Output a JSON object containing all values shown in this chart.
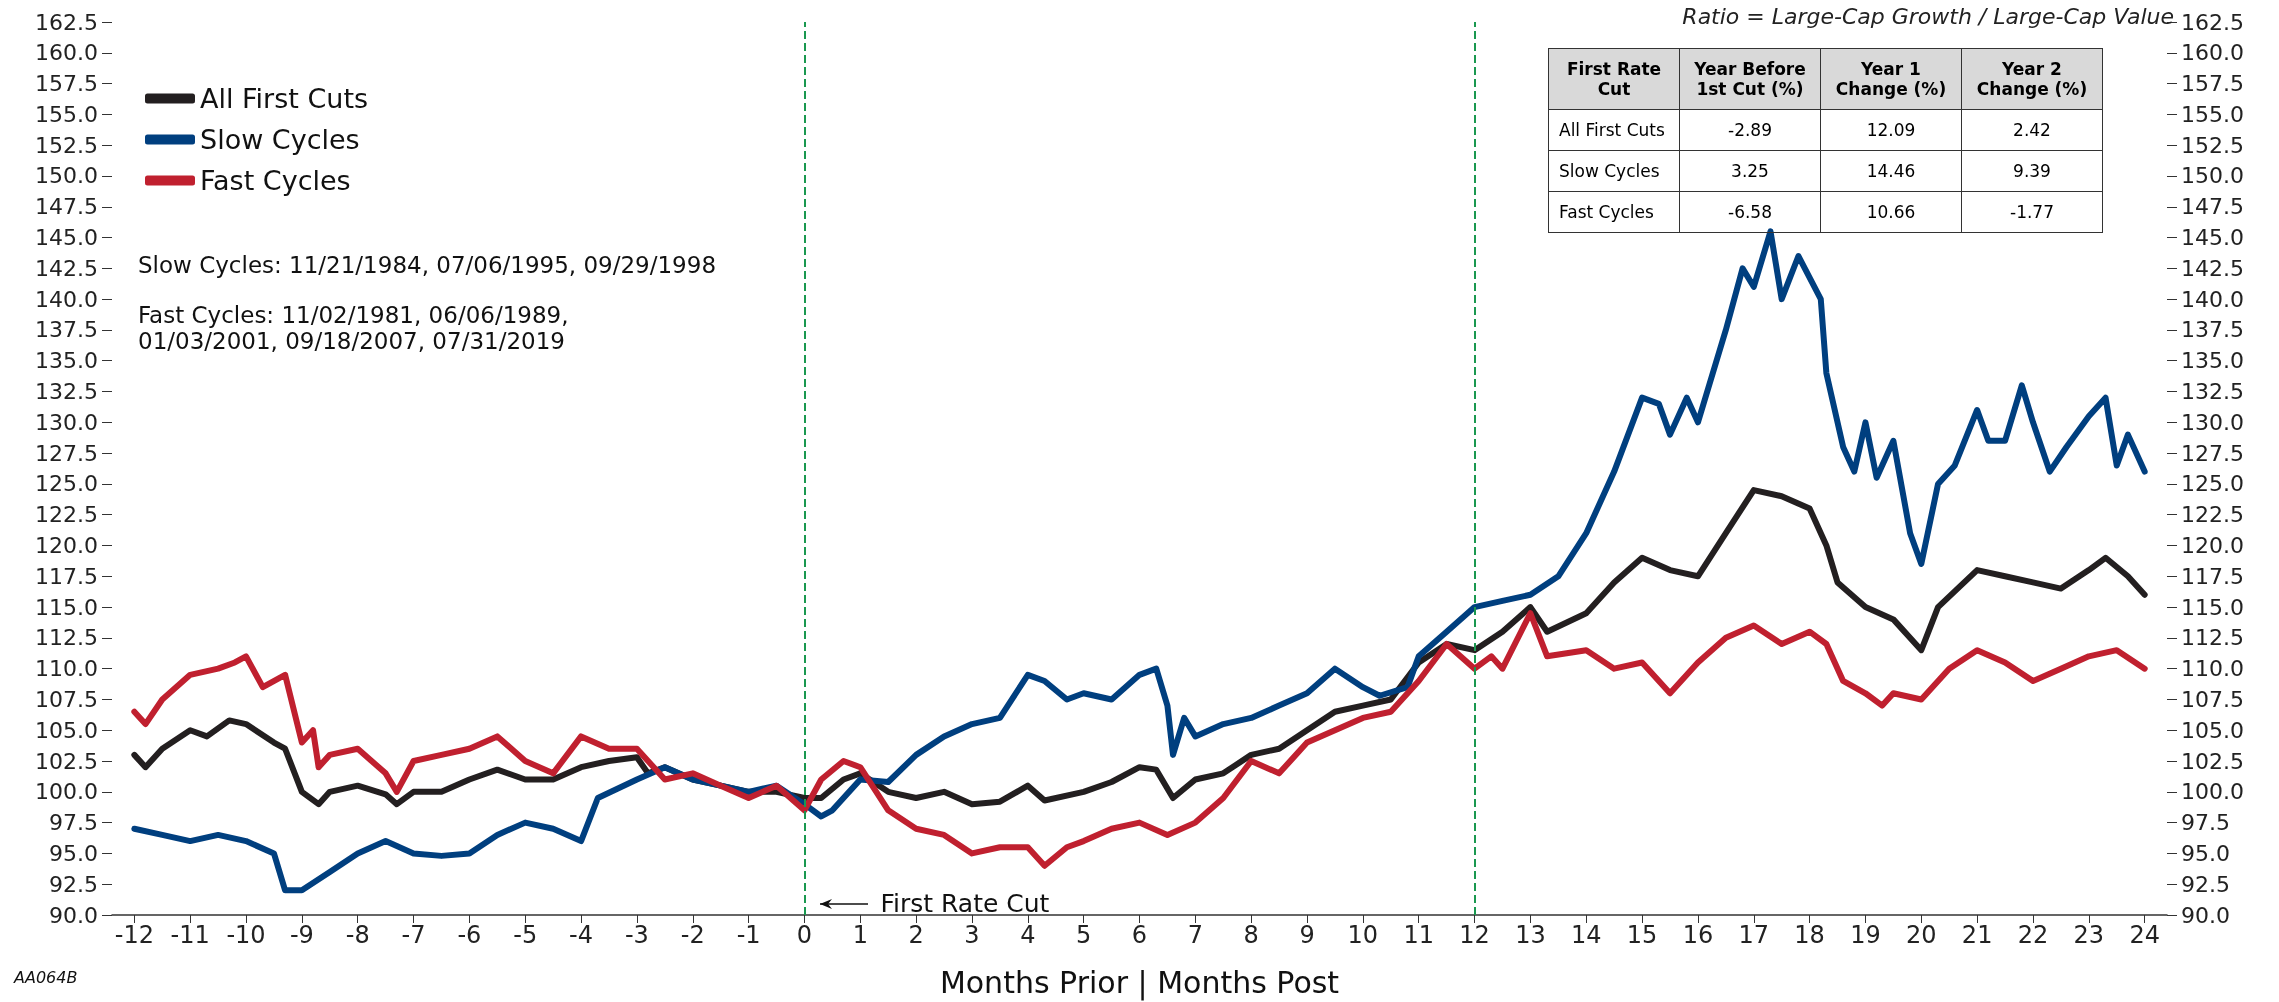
{
  "chart_data": [
    {
      "type": "line",
      "title": "Ratio = Large-Cap Growth / Large-Cap Value",
      "xlabel": "Months Prior | Months Post",
      "legend": "top left",
      "marker": "none",
      "line_style": "solid",
      "grid": false,
      "xlim": [
        -12.4,
        24.4
      ],
      "xticks": [
        -12,
        -11,
        -10,
        -9,
        -8,
        -7,
        -6,
        -5,
        -4,
        -3,
        -2,
        -1,
        0,
        1,
        2,
        3,
        4,
        5,
        6,
        7,
        8,
        9,
        10,
        11,
        12,
        13,
        14,
        15,
        16,
        17,
        18,
        19,
        20,
        21,
        22,
        23,
        24
      ],
      "ylim": [
        90,
        162.5
      ],
      "yticks": [
        {
          "value": 90,
          "label": "90.0"
        },
        {
          "value": 92.5,
          "label": "92.5"
        },
        {
          "value": 95,
          "label": "95.0"
        },
        {
          "value": 97.5,
          "label": "97.5"
        },
        {
          "value": 100,
          "label": "100.0"
        },
        {
          "value": 102.5,
          "label": "102.5"
        },
        {
          "value": 105,
          "label": "105.0"
        },
        {
          "value": 107.5,
          "label": "107.5"
        },
        {
          "value": 110,
          "label": "110.0"
        },
        {
          "value": 112.5,
          "label": "112.5"
        },
        {
          "value": 115,
          "label": "115.0"
        },
        {
          "value": 117.5,
          "label": "117.5"
        },
        {
          "value": 120,
          "label": "120.0"
        },
        {
          "value": 122.5,
          "label": "122.5"
        },
        {
          "value": 125,
          "label": "125.0"
        },
        {
          "value": 127.5,
          "label": "127.5"
        },
        {
          "value": 130,
          "label": "130.0"
        },
        {
          "value": 132.5,
          "label": "132.5"
        },
        {
          "value": 135,
          "label": "135.0"
        },
        {
          "value": 137.5,
          "label": "137.5"
        },
        {
          "value": 140,
          "label": "140.0"
        },
        {
          "value": 142.5,
          "label": "142.5"
        },
        {
          "value": 145,
          "label": "145.0"
        },
        {
          "value": 147.5,
          "label": "147.5"
        },
        {
          "value": 150,
          "label": "150.0"
        },
        {
          "value": 152.5,
          "label": "152.5"
        },
        {
          "value": 155,
          "label": "155.0"
        },
        {
          "value": 157.5,
          "label": "157.5"
        },
        {
          "value": 160,
          "label": "160.0"
        },
        {
          "value": 162.5,
          "label": "162.5"
        }
      ],
      "y2lim": [
        90,
        162.5
      ],
      "y2ticks": [
        {
          "value": 90,
          "label": "90.0"
        },
        {
          "value": 92.5,
          "label": "92.5"
        },
        {
          "value": 95,
          "label": "95.0"
        },
        {
          "value": 97.5,
          "label": "97.5"
        },
        {
          "value": 100,
          "label": "100.0"
        },
        {
          "value": 102.5,
          "label": "102.5"
        },
        {
          "value": 105,
          "label": "105.0"
        },
        {
          "value": 107.5,
          "label": "107.5"
        },
        {
          "value": 110,
          "label": "110.0"
        },
        {
          "value": 112.5,
          "label": "112.5"
        },
        {
          "value": 115,
          "label": "115.0"
        },
        {
          "value": 117.5,
          "label": "117.5"
        },
        {
          "value": 120,
          "label": "120.0"
        },
        {
          "value": 122.5,
          "label": "122.5"
        },
        {
          "value": 125,
          "label": "125.0"
        },
        {
          "value": 127.5,
          "label": "127.5"
        },
        {
          "value": 130,
          "label": "130.0"
        },
        {
          "value": 132.5,
          "label": "132.5"
        },
        {
          "value": 135,
          "label": "135.0"
        },
        {
          "value": 137.5,
          "label": "137.5"
        },
        {
          "value": 140,
          "label": "140.0"
        },
        {
          "value": 142.5,
          "label": "142.5"
        },
        {
          "value": 145,
          "label": "145.0"
        },
        {
          "value": 147.5,
          "label": "147.5"
        },
        {
          "value": 150,
          "label": "150.0"
        },
        {
          "value": 152.5,
          "label": "152.5"
        },
        {
          "value": 155,
          "label": "155.0"
        },
        {
          "value": 157.5,
          "label": "157.5"
        },
        {
          "value": 160,
          "label": "160.0"
        },
        {
          "value": 162.5,
          "label": "162.5"
        }
      ],
      "ref_lines": [
        {
          "axis": "x",
          "value": 0,
          "color": "#1a9850",
          "line_style": "dashed"
        },
        {
          "axis": "x",
          "value": 12,
          "color": "#1a9850",
          "line_style": "dashed"
        }
      ],
      "annotations": [
        "Slow Cycles: 11/21/1984, 07/06/1995, 09/29/1998",
        "Fast Cycles: 11/02/1981, 06/06/1989, 01/03/2001, 09/18/2007, 07/31/2019",
        "First Rate Cut",
        "AA064B"
      ],
      "series": [
        {
          "name": "All First Cuts",
          "color": "#231f20",
          "x": [
            -12,
            -11.8,
            -11.5,
            -11,
            -10.7,
            -10.3,
            -10,
            -9.5,
            -9.3,
            -9,
            -8.7,
            -8.5,
            -8,
            -7.5,
            -7.3,
            -7,
            -6.5,
            -6,
            -5.5,
            -5,
            -4.5,
            -4,
            -3.5,
            -3,
            -2.8,
            -2.5,
            -2,
            -1.5,
            -1,
            -0.5,
            0,
            0.3,
            0.7,
            1,
            1.5,
            2,
            2.5,
            3,
            3.5,
            4,
            4.3,
            5,
            5.5,
            6,
            6.3,
            6.6,
            7,
            7.5,
            8,
            8.5,
            9,
            9.5,
            10,
            10.5,
            11,
            11.5,
            12,
            12.5,
            13,
            13.3,
            14,
            14.5,
            15,
            15.5,
            16,
            16.5,
            17,
            17.5,
            18,
            18.3,
            18.5,
            19,
            19.5,
            20,
            20.3,
            21,
            21.5,
            22,
            22.5,
            23,
            23.3,
            23.7,
            24
          ],
          "values": [
            103,
            102,
            103.5,
            105,
            104.5,
            105.8,
            105.5,
            104,
            103.5,
            100,
            99,
            100,
            100.5,
            99.8,
            99,
            100,
            100,
            101,
            101.8,
            101,
            101,
            102,
            102.5,
            102.8,
            101.5,
            102,
            101,
            100.5,
            100,
            100,
            99.5,
            99.5,
            101,
            101.5,
            100,
            99.5,
            100,
            99,
            99.2,
            100.5,
            99.3,
            100,
            100.8,
            102,
            101.8,
            99.5,
            101,
            101.5,
            103,
            103.5,
            105,
            106.5,
            107,
            107.5,
            110.5,
            112,
            111.5,
            113,
            115,
            113,
            114.5,
            117,
            119,
            118,
            117.5,
            121,
            124.5,
            124,
            123,
            120,
            117,
            115,
            114,
            111.5,
            115,
            118,
            117.5,
            117,
            116.5,
            118,
            119,
            117.5,
            116
          ]
        },
        {
          "name": "Slow Cycles",
          "color": "#003f7f",
          "x": [
            -12,
            -11.5,
            -11,
            -10.5,
            -10,
            -9.5,
            -9.3,
            -9,
            -8.5,
            -8,
            -7.5,
            -7,
            -6.5,
            -6,
            -5.5,
            -5,
            -4.5,
            -4,
            -3.7,
            -3,
            -2.5,
            -2,
            -1.5,
            -1,
            -0.5,
            0,
            0.3,
            0.5,
            1,
            1.5,
            2,
            2.5,
            3,
            3.5,
            4,
            4.3,
            4.7,
            5,
            5.5,
            6,
            6.3,
            6.5,
            6.6,
            6.8,
            7,
            7.5,
            8,
            8.5,
            9,
            9.5,
            10,
            10.3,
            10.8,
            11,
            11.5,
            12,
            12.5,
            13,
            13.5,
            14,
            14.5,
            15,
            15.3,
            15.5,
            15.8,
            16,
            16.5,
            16.8,
            17,
            17.3,
            17.5,
            17.8,
            18.2,
            18.3,
            18.6,
            18.8,
            19,
            19.2,
            19.5,
            19.8,
            20,
            20.3,
            20.6,
            21,
            21.2,
            21.5,
            21.8,
            22,
            22.3,
            22.6,
            23,
            23.3,
            23.5,
            23.7,
            24
          ],
          "values": [
            97,
            96.5,
            96,
            96.5,
            96,
            95,
            92,
            92,
            93.5,
            95,
            96,
            95,
            94.8,
            95,
            96.5,
            97.5,
            97,
            96,
            99.5,
            101,
            102,
            101,
            100.5,
            100,
            100.5,
            99,
            98,
            98.5,
            101,
            100.8,
            103,
            104.5,
            105.5,
            106,
            109.5,
            109,
            107.5,
            108,
            107.5,
            109.5,
            110,
            107,
            103,
            106,
            104.5,
            105.5,
            106,
            107,
            108,
            110,
            108.5,
            107.8,
            108.5,
            111,
            113,
            115,
            115.5,
            116,
            117.5,
            121,
            126,
            132,
            131.5,
            129,
            132,
            130,
            137.5,
            142.5,
            141,
            145.5,
            140,
            143.5,
            140,
            134,
            128,
            126,
            130,
            125.5,
            128.5,
            121,
            118.5,
            125,
            126.5,
            131,
            128.5,
            128.5,
            133,
            130,
            126,
            128,
            130.5,
            132,
            126.5,
            129,
            126
          ]
        },
        {
          "name": "Fast Cycles",
          "color": "#c0202f",
          "x": [
            -12,
            -11.8,
            -11.5,
            -11,
            -10.5,
            -10.2,
            -10,
            -9.7,
            -9.3,
            -9,
            -8.8,
            -8.7,
            -8.5,
            -8,
            -7.5,
            -7.3,
            -7,
            -6.5,
            -6,
            -5.5,
            -5,
            -4.5,
            -4,
            -3.5,
            -3,
            -2.5,
            -2,
            -1.5,
            -1,
            -0.5,
            0,
            0.3,
            0.7,
            1,
            1.5,
            2,
            2.5,
            3,
            3.5,
            4,
            4.3,
            4.7,
            5,
            5.5,
            6,
            6.5,
            7,
            7.5,
            8,
            8.5,
            9,
            9.5,
            10,
            10.5,
            11,
            11.5,
            12,
            12.3,
            12.5,
            13,
            13.3,
            14,
            14.5,
            15,
            15.5,
            16,
            16.5,
            17,
            17.5,
            18,
            18.3,
            18.6,
            19,
            19.3,
            19.5,
            20,
            20.5,
            21,
            21.5,
            22,
            22.5,
            23,
            23.5,
            24
          ],
          "values": [
            106.5,
            105.5,
            107.5,
            109.5,
            110,
            110.5,
            111,
            108.5,
            109.5,
            104,
            105,
            102,
            103,
            103.5,
            101.5,
            100,
            102.5,
            103,
            103.5,
            104.5,
            102.5,
            101.5,
            104.5,
            103.5,
            103.5,
            101,
            101.5,
            100.5,
            99.5,
            100.5,
            98.5,
            101,
            102.5,
            102,
            98.5,
            97,
            96.5,
            95,
            95.5,
            95.5,
            94,
            95.5,
            96,
            97,
            97.5,
            96.5,
            97.5,
            99.5,
            102.5,
            101.5,
            104,
            105,
            106,
            106.5,
            109,
            112,
            110,
            111,
            110,
            114.5,
            111,
            111.5,
            110,
            110.5,
            108,
            110.5,
            112.5,
            113.5,
            112,
            113,
            112,
            109,
            108,
            107,
            108,
            107.5,
            110,
            111.5,
            110.5,
            109,
            110,
            111,
            111.5,
            110
          ]
        }
      ]
    },
    {
      "type": "other",
      "annotations": [
        "First Rate Cut",
        "Year Before 1st Cut (%)",
        "Year 1 Change (%)",
        "Year 2 Change (%)",
        "All First Cuts",
        "-2.89",
        "12.09",
        "2.42",
        "Slow Cycles",
        "3.25",
        "14.46",
        "9.39",
        "Fast Cycles",
        "-6.58",
        "10.66",
        "-1.77"
      ]
    }
  ]
}
